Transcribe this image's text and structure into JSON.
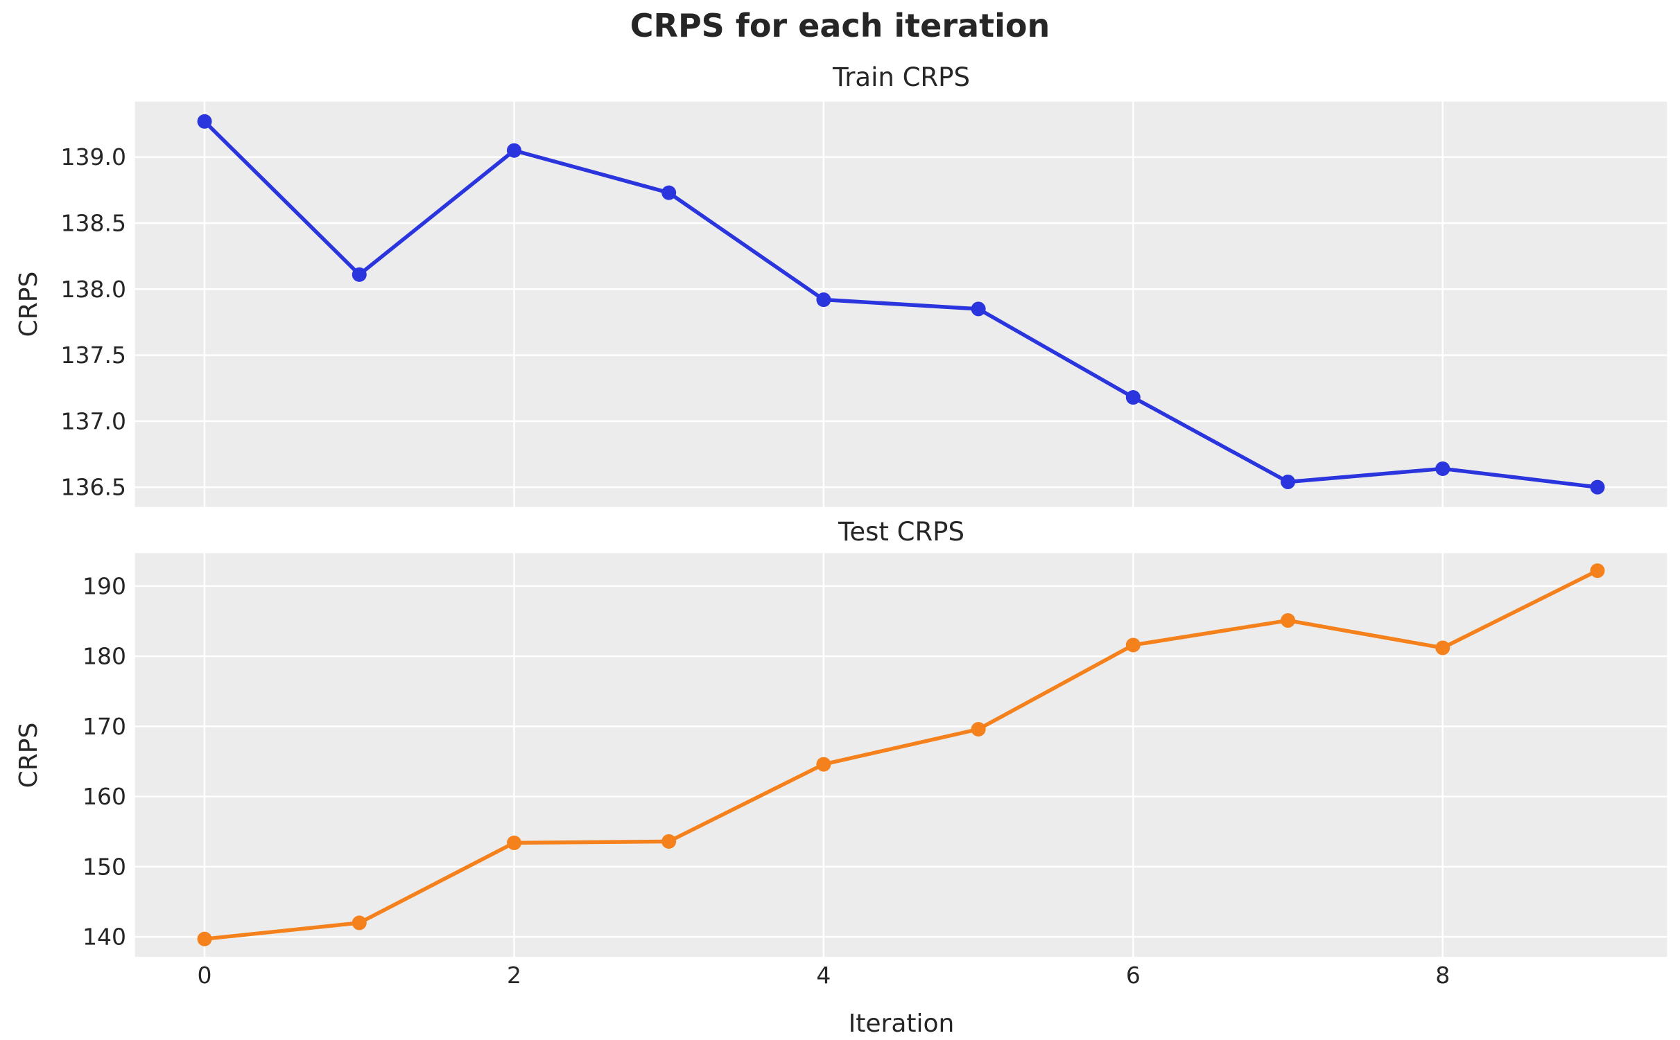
{
  "figure": {
    "title": "CRPS for each iteration"
  },
  "colors": {
    "train_line": "#2b35dd",
    "test_line": "#f5811c",
    "axes_background": "#ececec",
    "gridline": "#ffffff",
    "text": "#262626"
  },
  "chart_data": [
    {
      "type": "line",
      "title": "Train CRPS",
      "ylabel": "CRPS",
      "xlabel": "",
      "grid": true,
      "legend_position": "none",
      "xlim": [
        -0.45,
        9.45
      ],
      "ylim": [
        136.35,
        139.42
      ],
      "xticks": {
        "values": [
          0,
          2,
          4,
          6,
          8
        ],
        "labels": [
          "0",
          "2",
          "4",
          "6",
          "8"
        ],
        "show_labels": false
      },
      "yticks": {
        "values": [
          136.5,
          137.0,
          137.5,
          138.0,
          138.5,
          139.0
        ],
        "labels": [
          "136.5",
          "137.0",
          "137.5",
          "138.0",
          "138.5",
          "139.0"
        ]
      },
      "series": [
        {
          "name": "Train CRPS",
          "color": "#2b35dd",
          "x": [
            0,
            1,
            2,
            3,
            4,
            5,
            6,
            7,
            8,
            9
          ],
          "values": [
            139.27,
            138.11,
            139.05,
            138.73,
            137.92,
            137.85,
            137.18,
            136.54,
            136.64,
            136.5
          ]
        }
      ]
    },
    {
      "type": "line",
      "title": "Test CRPS",
      "ylabel": "CRPS",
      "xlabel": "Iteration",
      "grid": true,
      "legend_position": "none",
      "xlim": [
        -0.45,
        9.45
      ],
      "ylim": [
        137.15,
        194.7
      ],
      "xticks": {
        "values": [
          0,
          2,
          4,
          6,
          8
        ],
        "labels": [
          "0",
          "2",
          "4",
          "6",
          "8"
        ],
        "show_labels": true
      },
      "yticks": {
        "values": [
          140,
          150,
          160,
          170,
          180,
          190
        ],
        "labels": [
          "140",
          "150",
          "160",
          "170",
          "180",
          "190"
        ]
      },
      "series": [
        {
          "name": "Test CRPS",
          "color": "#f5811c",
          "x": [
            0,
            1,
            2,
            3,
            4,
            5,
            6,
            7,
            8,
            9
          ],
          "values": [
            139.7,
            142.0,
            153.4,
            153.6,
            164.6,
            169.6,
            181.6,
            185.1,
            181.2,
            192.2
          ]
        }
      ]
    }
  ]
}
